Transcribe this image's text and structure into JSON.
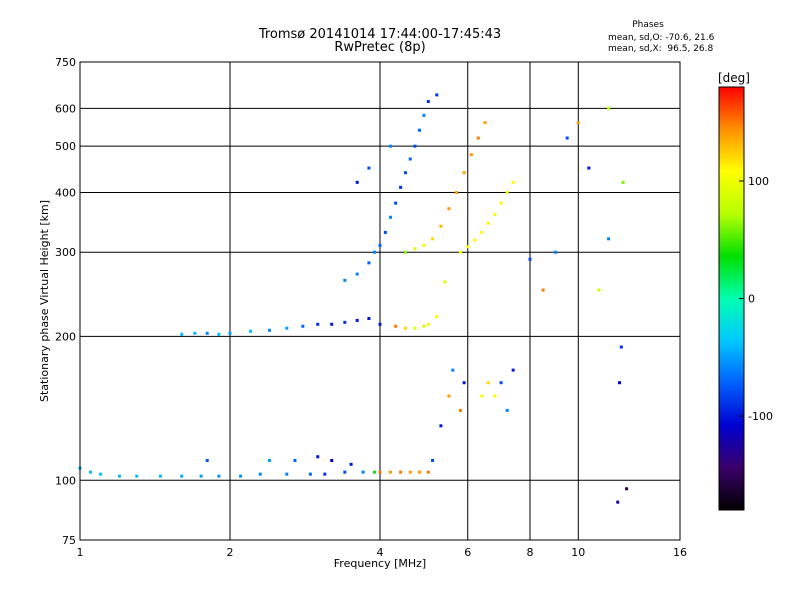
{
  "header": {
    "title_line1": "Tromsø 20141014 17:44:00-17:45:43",
    "title_line2": "RwPretec (8p)"
  },
  "phase_stats": {
    "title": "Phases",
    "o_line": "mean, sd,O: -70.6, 21.6",
    "x_line": "mean, sd,X:  96.5, 26.8"
  },
  "chart_data": {
    "type": "scatter",
    "xlabel": "Frequency [MHz]",
    "ylabel": "Stationary phase Virtual Height [km]",
    "xscale": "log",
    "yscale": "log",
    "xlim": [
      1,
      16
    ],
    "ylim": [
      75,
      750
    ],
    "xticks": [
      1,
      2,
      4,
      6,
      8,
      10,
      16
    ],
    "xtick_labels": [
      "1",
      "2",
      "4",
      "6",
      "8",
      "10",
      "16"
    ],
    "yticks": [
      75,
      100,
      200,
      300,
      400,
      500,
      600,
      750
    ],
    "ytick_labels": [
      "75",
      "100",
      "200",
      "300",
      "400",
      "500",
      "600",
      "750"
    ],
    "grid": true,
    "colorbar": {
      "label": "[deg]",
      "range": [
        -180,
        180
      ],
      "ticks": [
        100,
        0,
        -100
      ],
      "tick_labels": [
        "100",
        "0",
        "-100"
      ],
      "colors": [
        "#000000",
        "#3a006a",
        "#0000d0",
        "#0060ff",
        "#00c8ff",
        "#00ffb0",
        "#00e000",
        "#b8ff00",
        "#ffff00",
        "#ff9000",
        "#ff0000"
      ]
    },
    "series": [
      {
        "points": [
          [
            1.0,
            106,
            -40
          ],
          [
            1.05,
            104,
            -40
          ],
          [
            1.1,
            103,
            -40
          ],
          [
            1.2,
            102,
            -40
          ],
          [
            1.3,
            102,
            -40
          ],
          [
            1.45,
            102,
            -42
          ],
          [
            1.6,
            102,
            -45
          ],
          [
            1.75,
            102,
            -50
          ],
          [
            1.8,
            110,
            -80
          ],
          [
            1.9,
            102,
            -55
          ],
          [
            2.1,
            102,
            -55
          ],
          [
            2.3,
            103,
            -60
          ],
          [
            2.4,
            110,
            -50
          ],
          [
            2.6,
            103,
            -60
          ],
          [
            2.7,
            110,
            -70
          ],
          [
            2.9,
            103,
            -70
          ],
          [
            3.0,
            112,
            -100
          ],
          [
            3.1,
            103,
            -90
          ],
          [
            3.2,
            110,
            -110
          ],
          [
            3.4,
            104,
            -80
          ],
          [
            3.5,
            108,
            -100
          ],
          [
            3.7,
            104,
            -60
          ],
          [
            3.9,
            104,
            30
          ],
          [
            4.0,
            104,
            150
          ],
          [
            4.2,
            104,
            140
          ],
          [
            4.4,
            104,
            150
          ],
          [
            4.6,
            104,
            140
          ],
          [
            4.8,
            104,
            140
          ],
          [
            5.0,
            104,
            150
          ],
          [
            5.1,
            110,
            -80
          ],
          [
            5.3,
            130,
            -100
          ],
          [
            5.5,
            150,
            140
          ],
          [
            5.6,
            170,
            -60
          ],
          [
            5.8,
            140,
            150
          ],
          [
            5.9,
            160,
            -100
          ],
          [
            6.4,
            150,
            110
          ],
          [
            6.6,
            160,
            120
          ],
          [
            6.8,
            150,
            110
          ],
          [
            7.0,
            160,
            -80
          ],
          [
            7.2,
            140,
            -60
          ],
          [
            7.4,
            170,
            -100
          ]
        ]
      },
      {
        "points": [
          [
            1.6,
            202,
            -40
          ],
          [
            1.7,
            203,
            -40
          ],
          [
            1.8,
            203,
            -60
          ],
          [
            1.9,
            202,
            -40
          ],
          [
            2.0,
            203,
            -50
          ],
          [
            2.2,
            205,
            -40
          ],
          [
            2.4,
            206,
            -60
          ],
          [
            2.6,
            208,
            -50
          ],
          [
            2.8,
            210,
            -70
          ],
          [
            3.0,
            212,
            -90
          ],
          [
            3.2,
            212,
            -100
          ],
          [
            3.4,
            214,
            -90
          ],
          [
            3.6,
            216,
            -100
          ],
          [
            3.8,
            218,
            -100
          ],
          [
            4.0,
            212,
            -100
          ],
          [
            4.3,
            210,
            150
          ],
          [
            4.5,
            208,
            120
          ],
          [
            4.7,
            208,
            90
          ],
          [
            4.9,
            210,
            90
          ],
          [
            5.0,
            212,
            100
          ],
          [
            5.2,
            220,
            110
          ],
          [
            5.4,
            260,
            90
          ]
        ]
      },
      {
        "points": [
          [
            3.4,
            262,
            -60
          ],
          [
            3.6,
            270,
            -60
          ],
          [
            3.8,
            285,
            -70
          ],
          [
            3.9,
            300,
            -60
          ],
          [
            4.0,
            310,
            -70
          ],
          [
            4.1,
            330,
            -80
          ],
          [
            4.2,
            355,
            -60
          ],
          [
            4.3,
            380,
            -80
          ],
          [
            4.4,
            410,
            -90
          ],
          [
            4.5,
            440,
            -80
          ],
          [
            4.6,
            470,
            -70
          ],
          [
            4.7,
            500,
            -80
          ],
          [
            4.8,
            540,
            -70
          ],
          [
            4.9,
            580,
            -60
          ],
          [
            5.0,
            620,
            -90
          ],
          [
            5.2,
            640,
            -90
          ],
          [
            4.5,
            300,
            60
          ],
          [
            4.7,
            305,
            90
          ],
          [
            4.9,
            310,
            100
          ],
          [
            5.1,
            320,
            120
          ],
          [
            5.3,
            340,
            130
          ],
          [
            5.5,
            370,
            140
          ],
          [
            5.7,
            400,
            140
          ],
          [
            5.9,
            440,
            140
          ],
          [
            6.1,
            480,
            140
          ],
          [
            6.3,
            520,
            150
          ],
          [
            6.5,
            560,
            140
          ],
          [
            5.8,
            300,
            100
          ],
          [
            6.0,
            308,
            100
          ],
          [
            6.2,
            318,
            110
          ],
          [
            6.4,
            330,
            110
          ],
          [
            6.6,
            345,
            110
          ],
          [
            6.8,
            360,
            100
          ],
          [
            7.0,
            380,
            110
          ],
          [
            7.2,
            400,
            100
          ],
          [
            7.4,
            420,
            110
          ],
          [
            3.6,
            420,
            -100
          ],
          [
            3.8,
            450,
            -80
          ],
          [
            4.2,
            500,
            -60
          ]
        ]
      },
      {
        "points": [
          [
            8.0,
            290,
            -80
          ],
          [
            8.5,
            250,
            150
          ],
          [
            9.0,
            300,
            -60
          ],
          [
            9.5,
            520,
            -80
          ],
          [
            10.0,
            560,
            140
          ],
          [
            10.5,
            450,
            -100
          ],
          [
            11.0,
            250,
            80
          ],
          [
            11.5,
            320,
            -60
          ],
          [
            12.0,
            90,
            -120
          ],
          [
            12.1,
            160,
            -110
          ],
          [
            12.2,
            190,
            -90
          ],
          [
            12.3,
            420,
            60
          ],
          [
            12.5,
            96,
            -150
          ],
          [
            11.5,
            600,
            70
          ]
        ]
      }
    ]
  }
}
